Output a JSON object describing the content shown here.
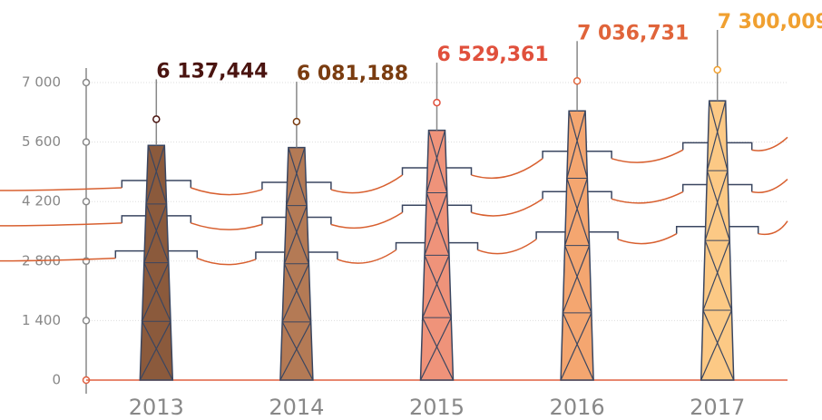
{
  "chart_data": {
    "type": "pictorial-bar",
    "categories": [
      "2013",
      "2014",
      "2015",
      "2016",
      "2017"
    ],
    "values": [
      6137.444,
      6081.188,
      6529.361,
      7036.731,
      7300.009
    ],
    "value_labels": [
      "6 137,444",
      "6 081,188",
      "6 529,361",
      "7 036,731",
      "7 300,009"
    ],
    "colors": [
      "#8b5a3c",
      "#b47a55",
      "#ef937a",
      "#f4a670",
      "#fcc985"
    ],
    "label_colors": [
      "#4a1410",
      "#7a3c10",
      "#e0503c",
      "#e0643a",
      "#f0a030"
    ],
    "ylim": [
      0,
      8900
    ],
    "yticks": [
      0,
      {
        "value": 1400,
        "label": "1 400"
      },
      {
        "value": 2800,
        "label": "2 800"
      },
      {
        "value": 4200,
        "label": "4 200"
      },
      {
        "value": 5600,
        "label": "5 600"
      },
      {
        "value": 7000,
        "label": "7 000"
      }
    ],
    "grid": true
  }
}
